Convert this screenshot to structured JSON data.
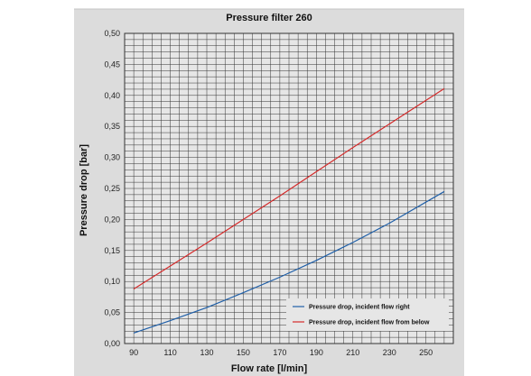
{
  "chart_data": {
    "type": "line",
    "title": "Pressure filter 260",
    "xlabel": "Flow rate [l/min]",
    "ylabel": "Pressure drop [bar]",
    "xlim": [
      85,
      265
    ],
    "ylim": [
      0,
      0.5
    ],
    "x_ticks": [
      "90",
      "110",
      "130",
      "150",
      "170",
      "190",
      "210",
      "230",
      "250"
    ],
    "y_ticks": [
      "0,00",
      "0,05",
      "0,10",
      "0,15",
      "0,20",
      "0,25",
      "0,30",
      "0,35",
      "0,40",
      "0,45",
      "0,50"
    ],
    "grid": true,
    "legend_position": "bottom-right",
    "series": [
      {
        "name": "Pressure drop, incident flow right",
        "color": "#1f5fa8",
        "x": [
          90,
          110,
          130,
          150,
          170,
          190,
          210,
          230,
          260
        ],
        "y": [
          0.017,
          0.037,
          0.058,
          0.082,
          0.107,
          0.134,
          0.163,
          0.194,
          0.245
        ]
      },
      {
        "name": "Pressure drop, incident flow from below",
        "color": "#d42a2a",
        "x": [
          90,
          110,
          130,
          150,
          170,
          190,
          210,
          230,
          260
        ],
        "y": [
          0.088,
          0.125,
          0.162,
          0.2,
          0.238,
          0.277,
          0.316,
          0.354,
          0.411
        ]
      }
    ],
    "colors": {
      "frame_background": "#dcdcdc",
      "plot_background": "#e6e6e6",
      "grid_line": "#333333",
      "page_background": "#ffffff"
    }
  }
}
